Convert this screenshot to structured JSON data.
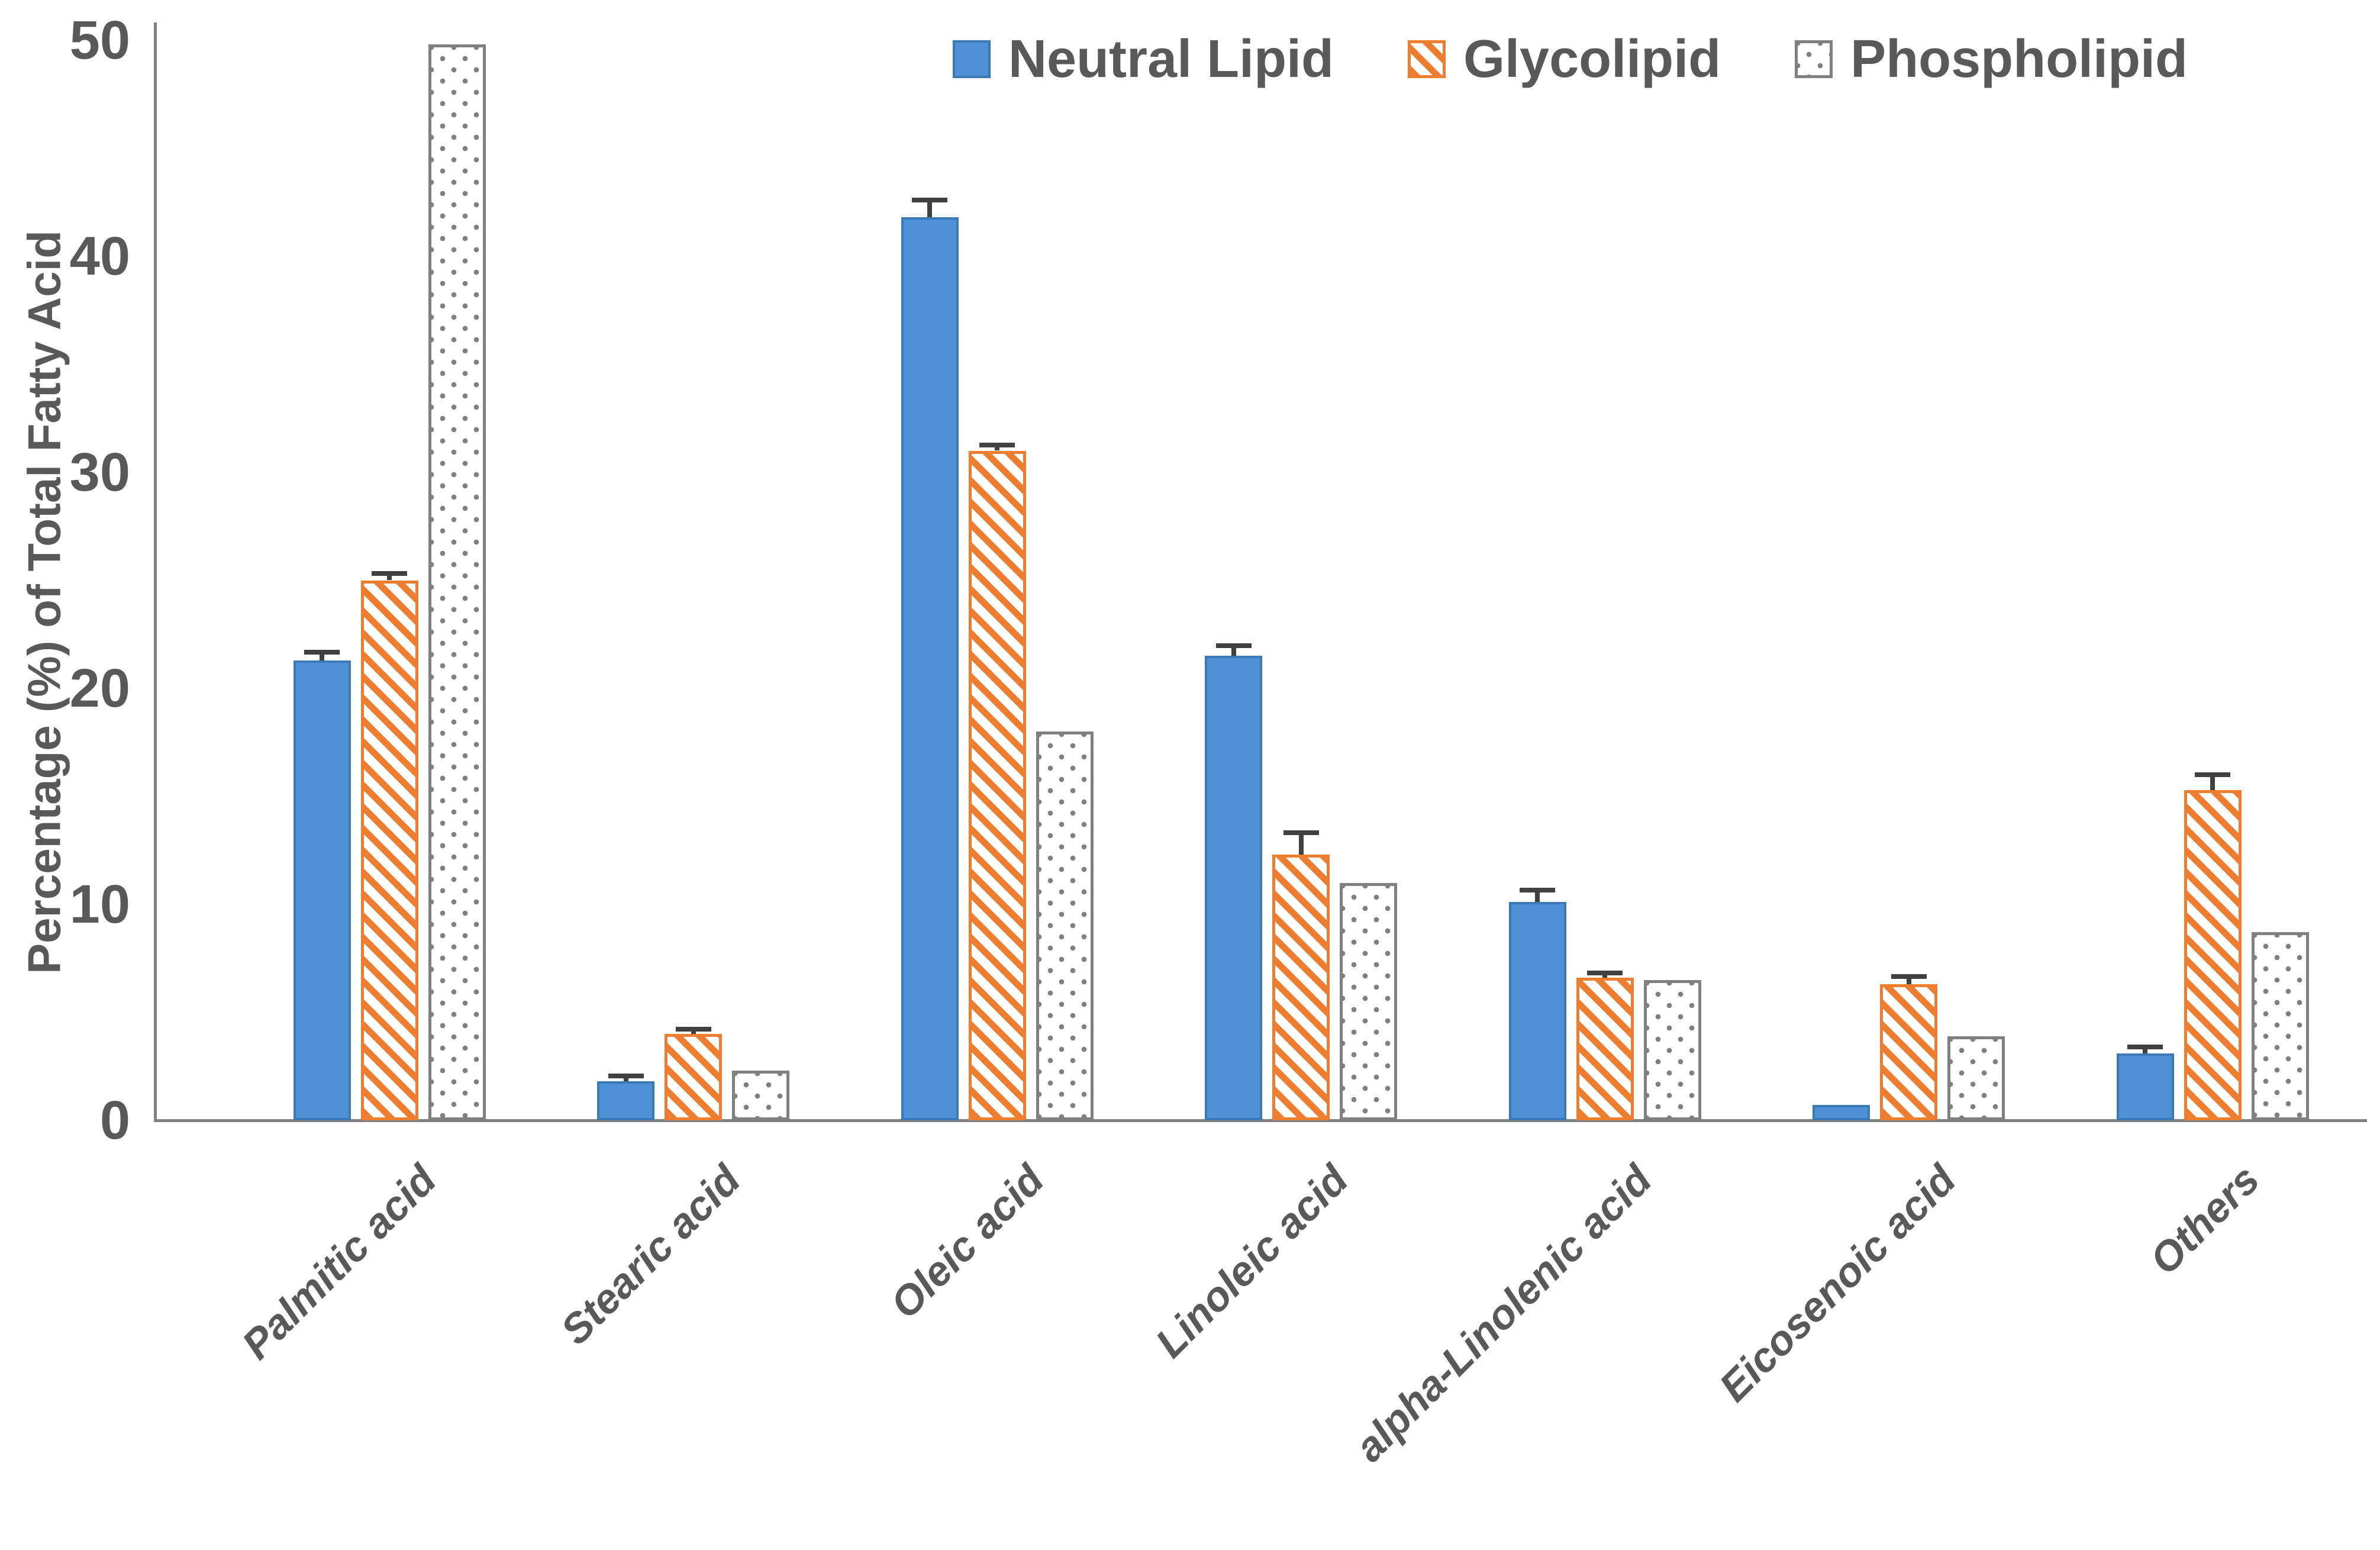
{
  "chart_data": {
    "type": "bar",
    "title": "",
    "xlabel": "",
    "ylabel": "Percentage (%) of Total Fatty Acid",
    "ylim": [
      0,
      50
    ],
    "yticks": [
      0,
      10,
      20,
      30,
      40,
      50
    ],
    "grid": false,
    "legend_position": "top",
    "categories": [
      "Palmitic acid",
      "Stearic acid",
      "Oleic acid",
      "Linoleic acid",
      "alpha-Linolenic acid",
      "Eicosenoic acid",
      "Others"
    ],
    "series": [
      {
        "name": "Neutral Lipid",
        "pattern": "solid",
        "color": "#4E91D5",
        "values": [
          21.3,
          1.8,
          41.8,
          21.5,
          10.1,
          0.7,
          3.1
        ],
        "errors": [
          0.25,
          0.15,
          0.7,
          0.35,
          0.45,
          0,
          0.2
        ]
      },
      {
        "name": "Glycolipid",
        "pattern": "diagonal-hatch",
        "color": "#ED7D31",
        "values": [
          25.0,
          4.0,
          31.0,
          12.3,
          6.6,
          6.3,
          15.3
        ],
        "errors": [
          0.2,
          0.1,
          0.15,
          0.9,
          0.1,
          0.25,
          0.6
        ]
      },
      {
        "name": "Phospholipid",
        "pattern": "dots",
        "color": "#808080",
        "values": [
          49.8,
          2.3,
          18.0,
          11.0,
          6.5,
          3.9,
          8.7
        ],
        "errors": [
          0,
          0,
          0,
          0,
          0,
          0,
          0
        ]
      }
    ],
    "error_bar_color": "#404040",
    "axis_color": "#808080",
    "text_color": "#595959"
  }
}
